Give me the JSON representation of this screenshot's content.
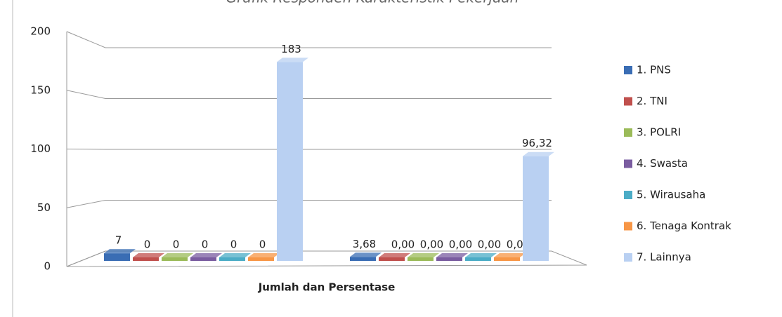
{
  "chart_data": {
    "type": "bar",
    "title": "Grafik Responden Karakteristik Pekerjaan",
    "x_label": "Jumlah dan Persentase",
    "categories": [
      null,
      null
    ],
    "series": [
      {
        "name": "1. PNS",
        "color": "#3a6db4",
        "values": [
          7,
          3.68
        ],
        "value_labels": [
          "7",
          "3,68"
        ]
      },
      {
        "name": "2. TNI",
        "color": "#c0504d",
        "values": [
          0,
          0
        ],
        "value_labels": [
          "0",
          "0,00"
        ]
      },
      {
        "name": "3. POLRI",
        "color": "#9bbb59",
        "values": [
          0,
          0
        ],
        "value_labels": [
          "0",
          "0,00"
        ]
      },
      {
        "name": "4. Swasta",
        "color": "#7a5ca0",
        "values": [
          0,
          0
        ],
        "value_labels": [
          "0",
          "0,00"
        ]
      },
      {
        "name": "5. Wirausaha",
        "color": "#4bacc6",
        "values": [
          0,
          0
        ],
        "value_labels": [
          "0",
          "0,00"
        ]
      },
      {
        "name": "6. Tenaga Kontrak",
        "color": "#f79646",
        "values": [
          0,
          0
        ],
        "value_labels": [
          "0",
          "0,00"
        ]
      },
      {
        "name": "7. Lainnya",
        "color": "#b9d0f2",
        "values": [
          183,
          96.32
        ],
        "value_labels": [
          "183",
          "96,32"
        ]
      }
    ],
    "ylim": [
      0,
      200
    ],
    "yticks": [
      0,
      50,
      100,
      150,
      200
    ],
    "grid": true,
    "legend": "right"
  }
}
